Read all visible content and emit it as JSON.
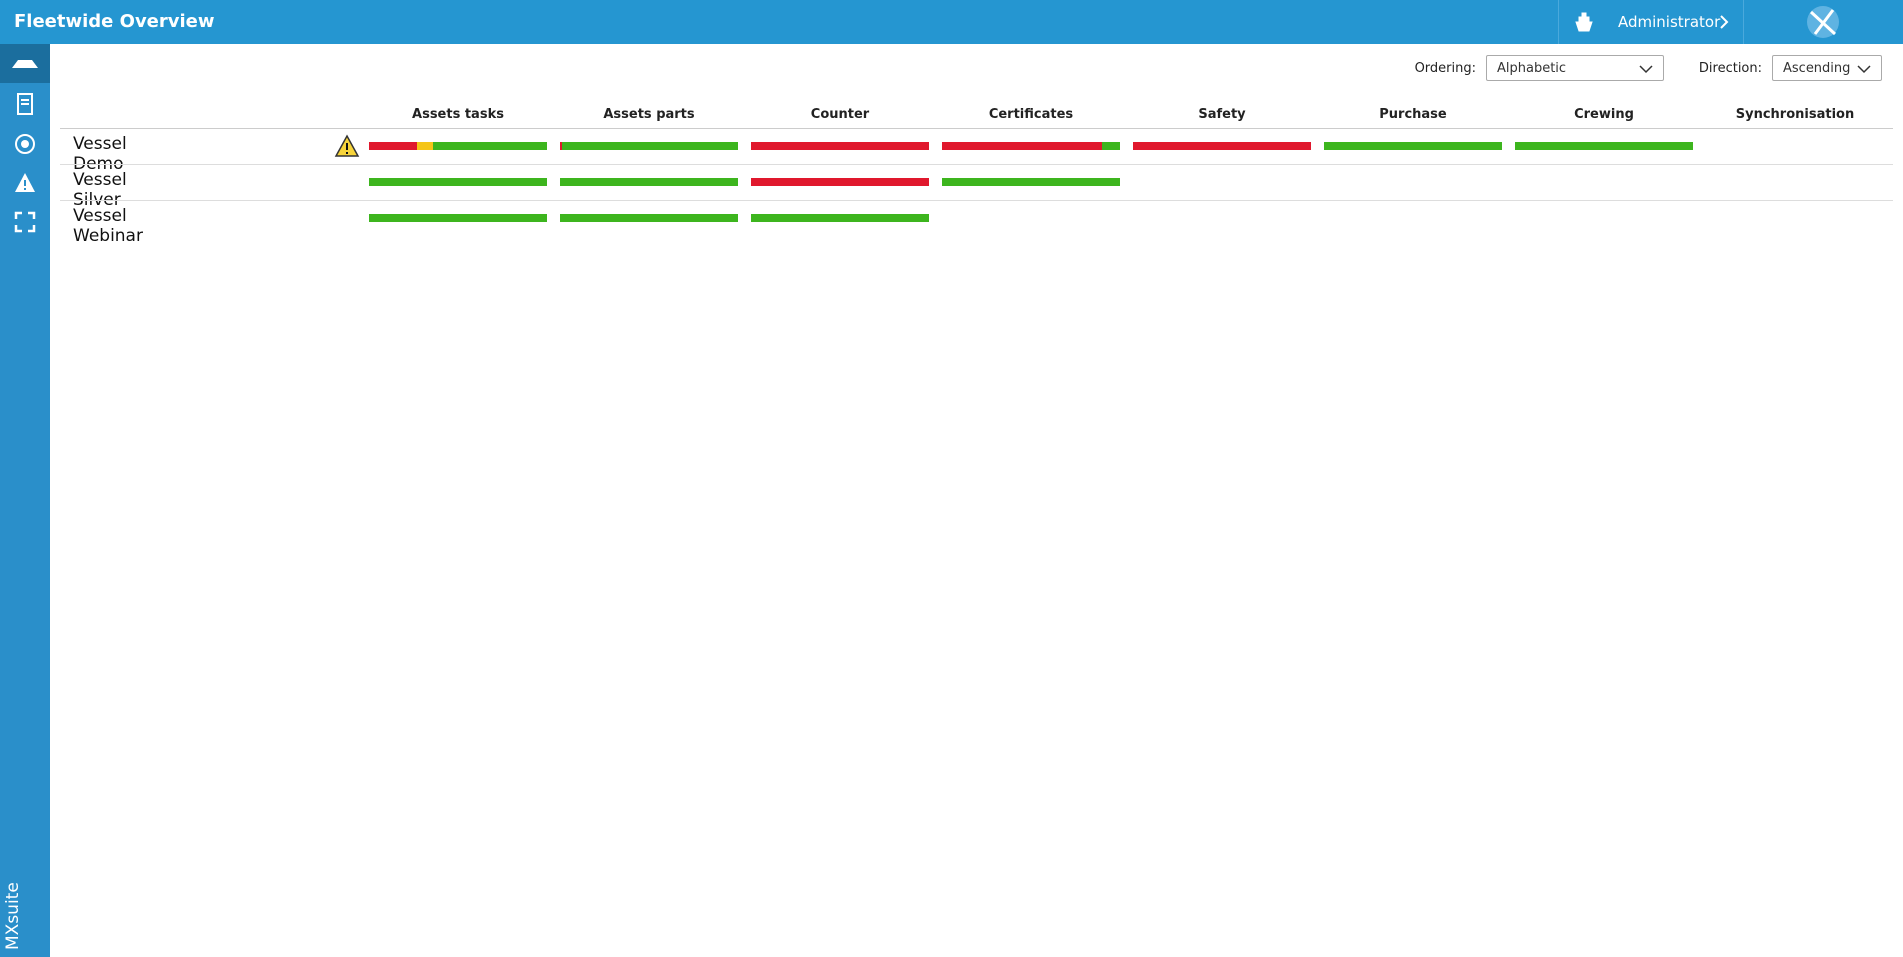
{
  "header": {
    "title": "Fleetwide Overview",
    "user": "Administrator",
    "brand": "MXsuite"
  },
  "controls": {
    "ordering": {
      "label": "Ordering:",
      "value": "Alphabetic"
    },
    "direction": {
      "label": "Direction:",
      "value": "Ascending"
    }
  },
  "columns": [
    "Assets tasks",
    "Assets parts",
    "Counter",
    "Certificates",
    "Safety",
    "Purchase",
    "Crewing",
    "Synchronisation"
  ],
  "vessels": [
    {
      "name": "Vessel Demo",
      "warning": true,
      "status": [
        [
          {
            "color": "#e0182d",
            "share": 27
          },
          {
            "color": "#f5c518",
            "share": 9
          },
          {
            "color": "#3db51e",
            "share": 64
          }
        ],
        [
          {
            "color": "#e0182d",
            "share": 1
          },
          {
            "color": "#3db51e",
            "share": 99
          }
        ],
        [
          {
            "color": "#e0182d",
            "share": 100
          }
        ],
        [
          {
            "color": "#e0182d",
            "share": 90
          },
          {
            "color": "#3db51e",
            "share": 10
          }
        ],
        [
          {
            "color": "#e0182d",
            "share": 100
          }
        ],
        [
          {
            "color": "#3db51e",
            "share": 100
          }
        ],
        [
          {
            "color": "#3db51e",
            "share": 100
          }
        ],
        []
      ]
    },
    {
      "name": "Vessel Silver",
      "warning": false,
      "status": [
        [
          {
            "color": "#3db51e",
            "share": 100
          }
        ],
        [
          {
            "color": "#3db51e",
            "share": 100
          }
        ],
        [
          {
            "color": "#e0182d",
            "share": 100
          }
        ],
        [
          {
            "color": "#3db51e",
            "share": 100
          }
        ],
        [],
        [],
        [],
        []
      ]
    },
    {
      "name": "Vessel Webinar",
      "warning": false,
      "status": [
        [
          {
            "color": "#3db51e",
            "share": 100
          }
        ],
        [
          {
            "color": "#3db51e",
            "share": 100
          }
        ],
        [
          {
            "color": "#3db51e",
            "share": 100
          }
        ],
        [],
        [],
        [],
        [],
        []
      ]
    }
  ]
}
